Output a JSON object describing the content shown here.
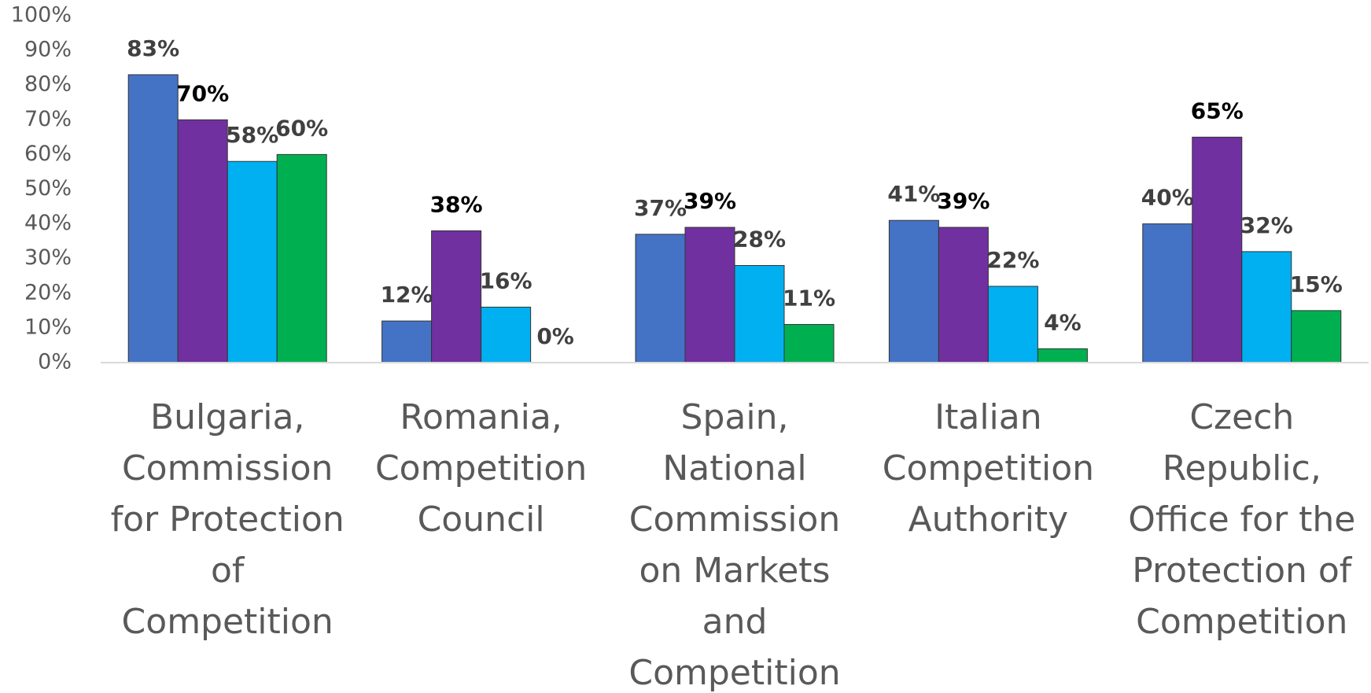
{
  "chart_data": {
    "type": "bar",
    "categories": [
      "Bulgaria, Commission for Protection of Competition",
      "Romania, Competition Council",
      "Spain, National Commission on Markets and Competition",
      "Italian Competition Authority",
      "Czech Republic, Office for the Protection of Competition"
    ],
    "series": [
      {
        "color": "#4472c4",
        "values": [
          83,
          12,
          37,
          41,
          40
        ],
        "value_labels": [
          "83%",
          "12%",
          "37%",
          "41%",
          "40%"
        ]
      },
      {
        "color": "#7030a0",
        "values": [
          70,
          38,
          39,
          39,
          65
        ],
        "value_labels": [
          "70%",
          "38%",
          "39%",
          "39%",
          "65%"
        ]
      },
      {
        "color": "#00b0f0",
        "values": [
          58,
          16,
          28,
          22,
          32
        ],
        "value_labels": [
          "58%",
          "16%",
          "28%",
          "22%",
          "32%"
        ]
      },
      {
        "color": "#00b050",
        "values": [
          60,
          0,
          11,
          4,
          15
        ],
        "value_labels": [
          "60%",
          "0%",
          "11%",
          "4%",
          "15%"
        ]
      }
    ],
    "ylim": [
      0,
      100
    ],
    "yticks": [
      {
        "value": 0,
        "label": "0%"
      },
      {
        "value": 10,
        "label": "10%"
      },
      {
        "value": 20,
        "label": "20%"
      },
      {
        "value": 30,
        "label": "30%"
      },
      {
        "value": 40,
        "label": "40%"
      },
      {
        "value": 50,
        "label": "50%"
      },
      {
        "value": 60,
        "label": "60%"
      },
      {
        "value": 70,
        "label": "70%"
      },
      {
        "value": 80,
        "label": "80%"
      },
      {
        "value": 90,
        "label": "90%"
      },
      {
        "value": 100,
        "label": "100%"
      }
    ]
  }
}
